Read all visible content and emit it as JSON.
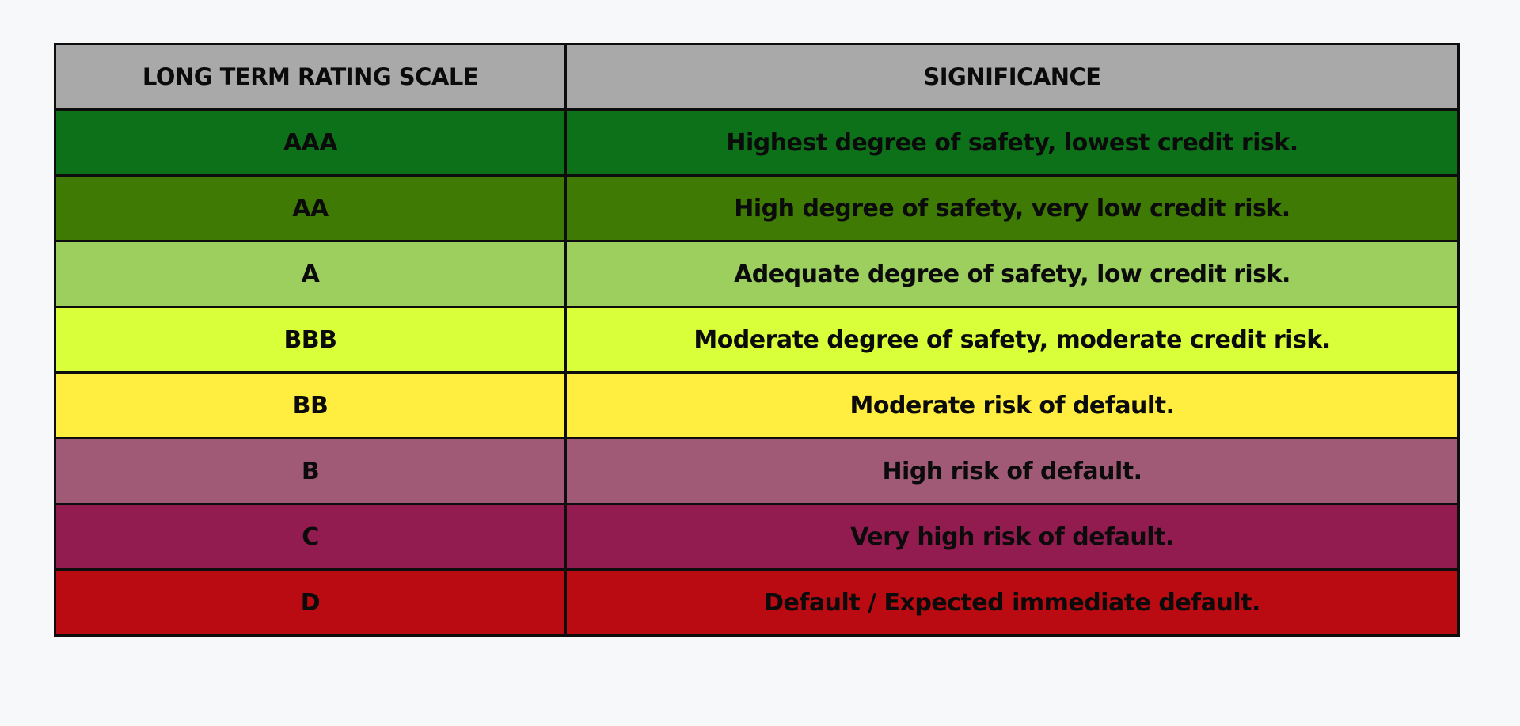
{
  "table": {
    "headers": [
      "LONG TERM RATING SCALE",
      "SIGNIFICANCE"
    ],
    "header_color": "#a9a9a9",
    "rows": [
      {
        "rating": "AAA",
        "significance": "Highest degree of safety, lowest credit risk.",
        "color": "#0d711a"
      },
      {
        "rating": "AA",
        "significance": "High degree of safety, very low credit risk.",
        "color": "#3f7a05"
      },
      {
        "rating": "A",
        "significance": "Adequate degree of safety, low credit risk.",
        "color": "#9ccf5e"
      },
      {
        "rating": "BBB",
        "significance": "Moderate degree of safety, moderate credit risk.",
        "color": "#d9fe3a"
      },
      {
        "rating": "BB",
        "significance": "Moderate risk of default.",
        "color": "#ffed3f"
      },
      {
        "rating": "B",
        "significance": "High risk of default.",
        "color": "#a05a75"
      },
      {
        "rating": "C",
        "significance": "Very high risk of default.",
        "color": "#921b4f"
      },
      {
        "rating": "D",
        "significance": "Default / Expected immediate default.",
        "color": "#bb0b12"
      }
    ]
  }
}
